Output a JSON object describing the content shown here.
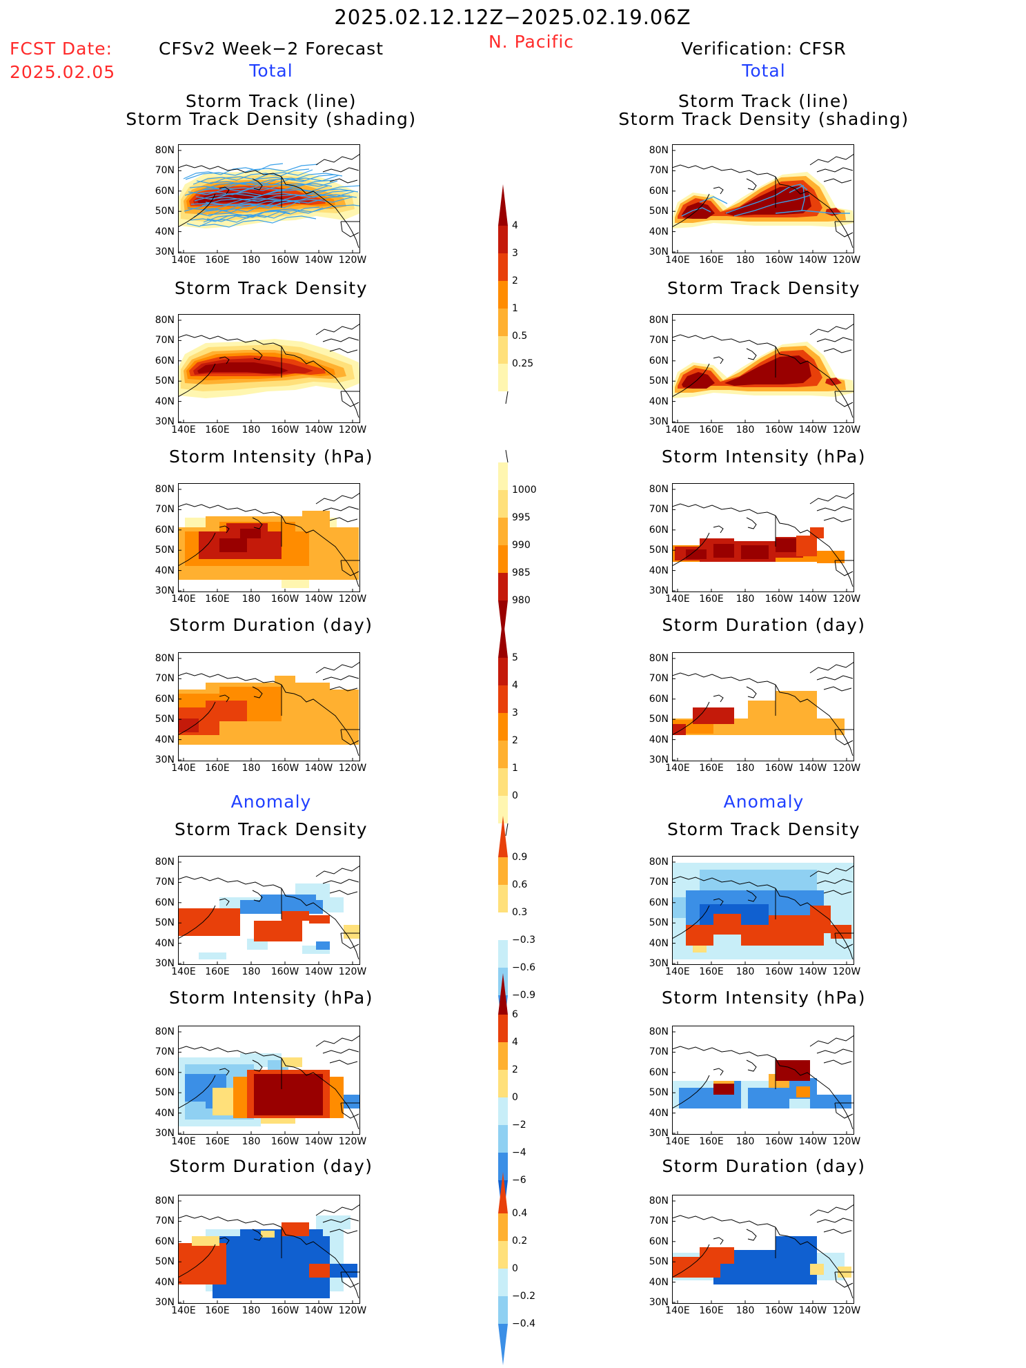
{
  "header": {
    "date_range": "2025.02.12.12Z−2025.02.19.06Z",
    "region": "N. Pacific",
    "fcst_label": "FCST Date:",
    "fcst_date": "2025.02.05",
    "left_title": "CFSv2 Week−2 Forecast",
    "right_title": "Verification: CFSR",
    "left_subtitle": "Total",
    "right_subtitle": "Total",
    "anomaly_left": "Anomaly",
    "anomaly_right": "Anomaly"
  },
  "axes": {
    "lat_labels": [
      "80N",
      "70N",
      "60N",
      "50N",
      "40N",
      "30N"
    ],
    "lon_labels": [
      "140E",
      "160E",
      "180",
      "160W",
      "140W",
      "120W"
    ]
  },
  "panel_titles": {
    "track_line": "Storm Track (line)",
    "track_density_shading": "Storm Track Density (shading)",
    "track_density": "Storm Track Density",
    "intensity": "Storm Intensity (hPa)",
    "duration": "Storm Duration (day)"
  },
  "colorbars": {
    "density": {
      "labels": [
        "4",
        "3",
        "2",
        "1",
        "0.5",
        "0.25"
      ]
    },
    "intensity": {
      "labels": [
        "1000",
        "995",
        "990",
        "985",
        "980"
      ]
    },
    "duration": {
      "labels": [
        "5",
        "4",
        "3",
        "2",
        "1",
        "0"
      ]
    },
    "density_anom": {
      "labels": [
        "0.9",
        "0.6",
        "0.3",
        "−0.3",
        "−0.6",
        "−0.9"
      ]
    },
    "intensity_anom": {
      "labels": [
        "6",
        "4",
        "2",
        "0",
        "−2",
        "−4",
        "−6"
      ]
    },
    "duration_anom": {
      "labels": [
        "0.4",
        "0.2",
        "0",
        "−0.2",
        "−0.4"
      ]
    }
  },
  "colors": {
    "warm": [
      "#fff6b0",
      "#ffe07a",
      "#ffb030",
      "#ff8c00",
      "#e8400a",
      "#c41a0a",
      "#990000"
    ],
    "cool": [
      "#c8eef8",
      "#8fd0f2",
      "#3b8fe6",
      "#1060d0"
    ],
    "track_line": "#3aa0e8"
  }
}
